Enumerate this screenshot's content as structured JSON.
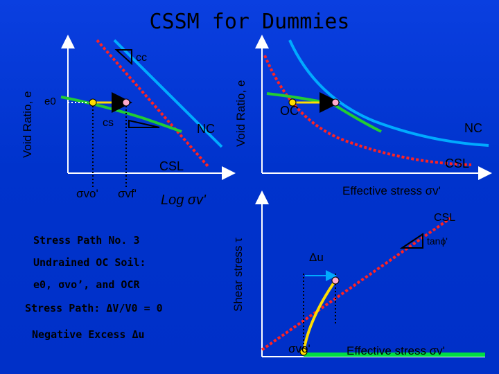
{
  "title": "CSSM for Dummies",
  "top_left": {
    "y_axis_label": "Void Ratio, e",
    "e0_label": "e0",
    "cc_label": "cc",
    "cs_label": "cs",
    "nc_label": "NC",
    "csl_label": "CSL",
    "sigma_vo_label": "σvo'",
    "sigma_vf_label": "σvf'",
    "x_axis_label": "Log σv'"
  },
  "top_right": {
    "y_axis_label": "Void Ratio, e",
    "oc_label": "OC",
    "nc_label": "NC",
    "csl_label": "CSL",
    "x_axis_label": "Effective stress σv'"
  },
  "bottom_right": {
    "y_axis_label": "Shear stress τ",
    "csl_label": "CSL",
    "tanphi_label": "tanϕ'",
    "du_label": "Δu",
    "sigma_vo_label": "σvo'",
    "x_axis_label": "Effective stress σv'"
  },
  "notes": {
    "line1": "Stress Path No. 3",
    "line2": "Undrained OC Soil:",
    "line3": "e0, σvo’, and OCR",
    "line4": "Stress Path: ΔV/V0 = 0",
    "line5": "Negative Excess Δu"
  },
  "colors": {
    "nc_line": "#00aaff",
    "oc_line": "#22cc33",
    "csl_line": "#ff2222",
    "path": "#ffdd00",
    "background": "#0033cc"
  }
}
